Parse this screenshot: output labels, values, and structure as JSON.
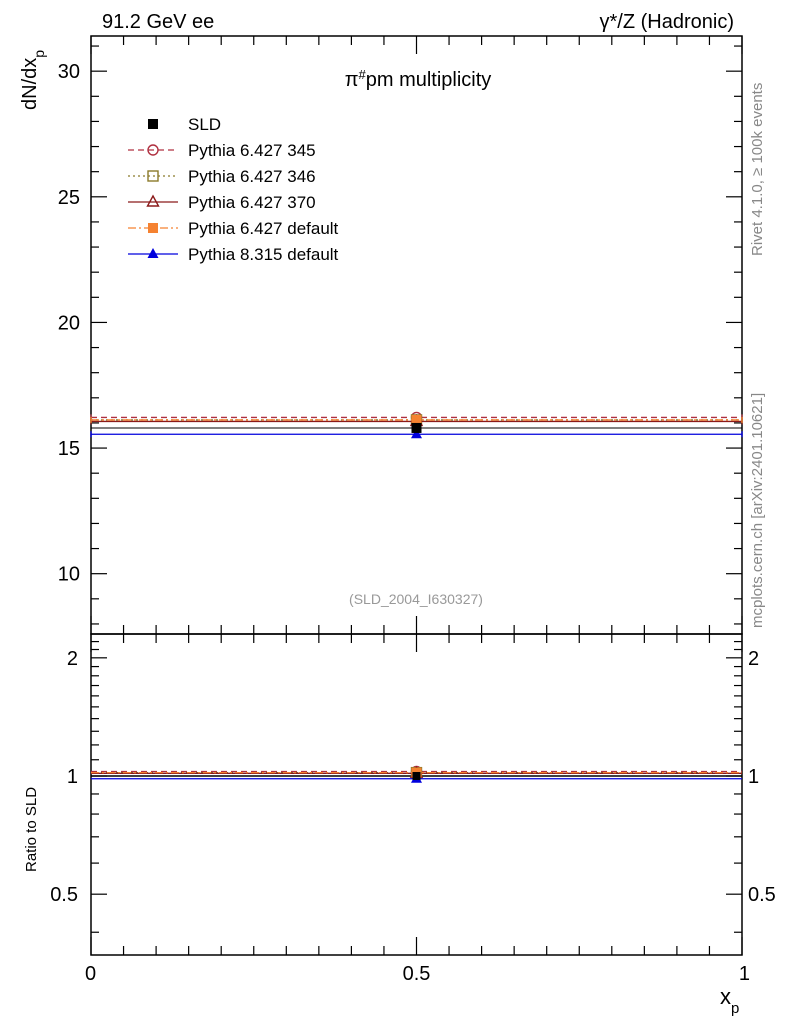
{
  "header": {
    "energy": "91.2 GeV ee",
    "process": "γ*/Z (Hadronic)"
  },
  "side_text": {
    "rivet": "Rivet 4.1.0, ≥ 100k events",
    "source": "mcplots.cern.ch [arXiv:2401.10621]"
  },
  "chart_data": [
    {
      "type": "scatter",
      "panel": "main",
      "title": "π^#pm multiplicity",
      "title_main": "π",
      "title_sup": "#",
      "title_rest": "pm multiplicity",
      "ylabel": "dN/dx_p",
      "ylabel_main": "dN/dx",
      "ylabel_sub": "p",
      "xlabel": "x_p",
      "xlabel_main": "x",
      "xlabel_sub": "p",
      "xlim": [
        0,
        1
      ],
      "ylim": [
        7.6,
        31.4
      ],
      "yticks": [
        10,
        15,
        20,
        25,
        30
      ],
      "ytick_labels": [
        "10",
        "15",
        "20",
        "25",
        "30"
      ],
      "watermark": "(SLD_2004_I630327)",
      "legend_position": "top-left",
      "series": [
        {
          "name": "SLD",
          "color": "#000000",
          "marker": "filled-square",
          "line": "none",
          "x": 0.5,
          "y": 15.8,
          "xerr": [
            0,
            1
          ],
          "yerr": 0.15
        },
        {
          "name": "Pythia 6.427 345",
          "color": "#b03040",
          "marker": "open-circle",
          "line": "dashed",
          "x": 0.5,
          "y": 16.22,
          "xerr": [
            0,
            1
          ]
        },
        {
          "name": "Pythia 6.427 346",
          "color": "#8b7a2a",
          "marker": "open-square",
          "line": "dotted",
          "x": 0.5,
          "y": 16.12,
          "xerr": [
            0,
            1
          ]
        },
        {
          "name": "Pythia 6.427 370",
          "color": "#8b1a1a",
          "marker": "open-triangle",
          "line": "solid",
          "x": 0.5,
          "y": 16.06,
          "xerr": [
            0,
            1
          ]
        },
        {
          "name": "Pythia 6.427 default",
          "color": "#f58231",
          "marker": "filled-square",
          "line": "dashdot",
          "x": 0.5,
          "y": 16.12,
          "xerr": [
            0,
            1
          ]
        },
        {
          "name": "Pythia 8.315 default",
          "color": "#0000dd",
          "marker": "filled-triangle",
          "line": "solid",
          "x": 0.5,
          "y": 15.55,
          "xerr": [
            0,
            1
          ]
        }
      ]
    },
    {
      "type": "scatter",
      "panel": "ratio",
      "ylabel": "Ratio to SLD",
      "xlim": [
        0,
        1
      ],
      "ylim": [
        0.35,
        2.3
      ],
      "yscale": "log",
      "yticks": [
        0.5,
        1,
        2
      ],
      "ytick_labels": [
        "0.5",
        "1",
        "2"
      ],
      "xticks": [
        0,
        0.5,
        1
      ],
      "xtick_labels": [
        "0",
        "0.5",
        "1"
      ],
      "series": [
        {
          "name": "Pythia 6.427 345",
          "color": "#b03040",
          "y": 1.027
        },
        {
          "name": "Pythia 6.427 346",
          "color": "#8b7a2a",
          "y": 1.02
        },
        {
          "name": "Pythia 6.427 370",
          "color": "#8b1a1a",
          "y": 1.016
        },
        {
          "name": "Pythia 6.427 default",
          "color": "#f58231",
          "y": 1.02
        },
        {
          "name": "Pythia 8.315 default",
          "color": "#0000dd",
          "y": 0.984
        }
      ]
    }
  ]
}
